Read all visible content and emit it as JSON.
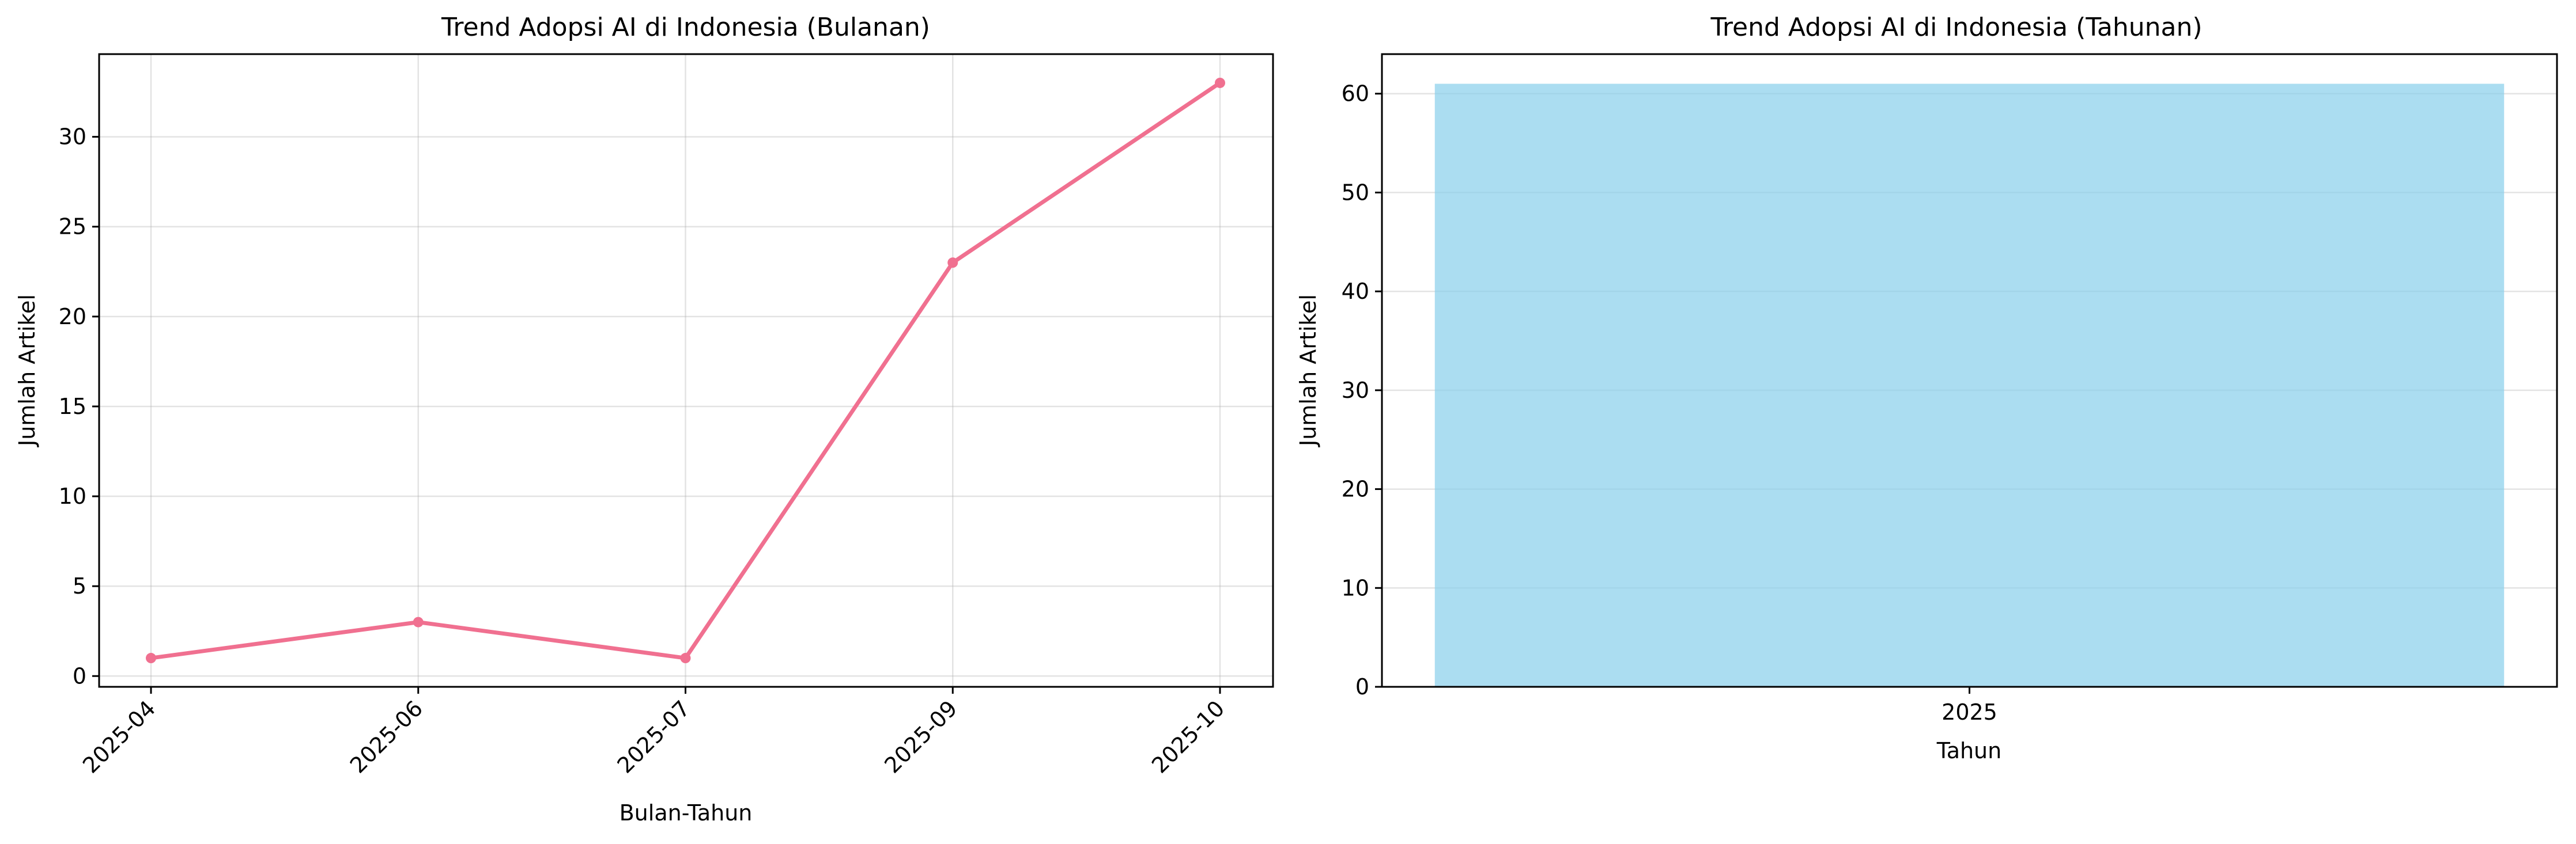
{
  "chart_data": [
    {
      "type": "line",
      "title": "Trend Adopsi AI di Indonesia (Bulanan)",
      "xlabel": "Bulan-Tahun",
      "ylabel": "Jumlah Artikel",
      "categories": [
        "2025-04",
        "2025-06",
        "2025-07",
        "2025-09",
        "2025-10"
      ],
      "values": [
        1,
        3,
        1,
        23,
        33
      ],
      "ylim": [
        -0.6,
        34.6
      ],
      "yticks": [
        0,
        5,
        10,
        15,
        20,
        25,
        30
      ],
      "grid": true,
      "color": "#f07090"
    },
    {
      "type": "bar",
      "title": "Trend Adopsi AI di Indonesia (Tahunan)",
      "xlabel": "Tahun",
      "ylabel": "Jumlah Artikel",
      "categories": [
        "2025"
      ],
      "values": [
        61
      ],
      "ylim": [
        0,
        64
      ],
      "yticks": [
        0,
        10,
        20,
        30,
        40,
        50,
        60
      ],
      "grid": true,
      "color": "#87ceeb"
    }
  ]
}
